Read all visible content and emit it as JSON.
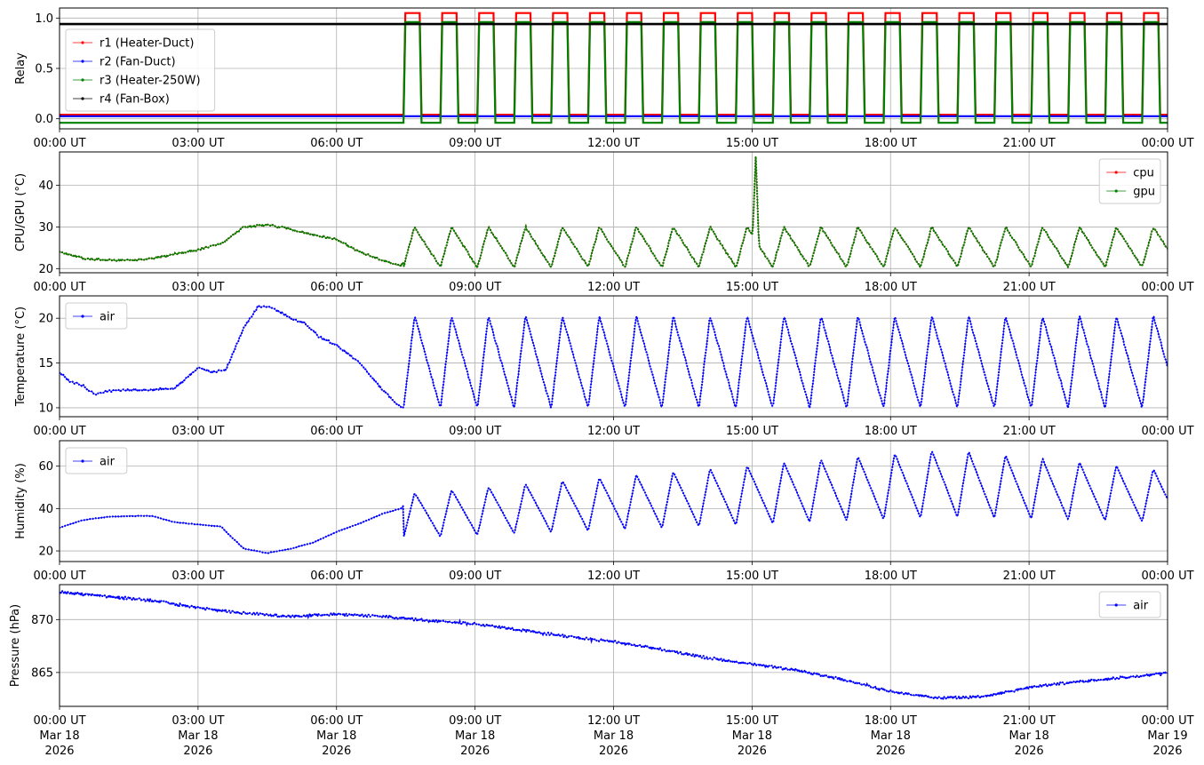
{
  "colors": {
    "red": "#ff0000",
    "blue": "#0000ff",
    "green": "#008000",
    "black": "#000000",
    "grid": "#b0b0b0"
  },
  "x_axis": {
    "ticks": [
      {
        "time": "00:00 UT",
        "date": "Mar 18",
        "year": "2026"
      },
      {
        "time": "03:00 UT",
        "date": "Mar 18",
        "year": "2026"
      },
      {
        "time": "06:00 UT",
        "date": "Mar 18",
        "year": "2026"
      },
      {
        "time": "09:00 UT",
        "date": "Mar 18",
        "year": "2026"
      },
      {
        "time": "12:00 UT",
        "date": "Mar 18",
        "year": "2026"
      },
      {
        "time": "15:00 UT",
        "date": "Mar 18",
        "year": "2026"
      },
      {
        "time": "18:00 UT",
        "date": "Mar 18",
        "year": "2026"
      },
      {
        "time": "21:00 UT",
        "date": "Mar 18",
        "year": "2026"
      },
      {
        "time": "00:00 UT",
        "date": "Mar 19",
        "year": "2026"
      }
    ],
    "range_hours": [
      0,
      24
    ]
  },
  "chart_data": [
    {
      "type": "line",
      "ylabel": "Relay",
      "ylim": [
        -0.1,
        1.1
      ],
      "yticks": [
        "0.0",
        "0.5",
        "1.0"
      ],
      "grid": true,
      "legend_position": "upper-left",
      "cycle": {
        "start_hour": 7.45,
        "period_hours": 0.8,
        "on_hours": 0.35,
        "end_hour": 24
      },
      "series": [
        {
          "name": "r1 (Heater-Duct)",
          "color": "#ff0000",
          "low": 0.04,
          "high": 1.05
        },
        {
          "name": "r2 (Fan-Duct)",
          "color": "#0000ff",
          "low": 0.025,
          "high": 0.025
        },
        {
          "name": "r3 (Heater-250W)",
          "color": "#008000",
          "low": -0.04,
          "high": 0.96
        },
        {
          "name": "r4 (Fan-Box)",
          "color": "#000000",
          "low": 0.94,
          "high": 0.94
        }
      ]
    },
    {
      "type": "line",
      "ylabel": "CPU/GPU (°C)",
      "ylim": [
        19,
        48
      ],
      "yticks": [
        "20",
        "30",
        "40"
      ],
      "grid": true,
      "legend_position": "upper-right",
      "series": [
        {
          "name": "cpu",
          "color": "#ff0000",
          "points": [
            [
              0,
              24
            ],
            [
              0.5,
              22.5
            ],
            [
              1,
              22
            ],
            [
              1.5,
              22
            ],
            [
              2,
              22.3
            ],
            [
              2.5,
              23.5
            ],
            [
              3,
              24.5
            ],
            [
              3.5,
              26
            ],
            [
              4,
              30
            ],
            [
              4.5,
              30.5
            ],
            [
              5,
              29.5
            ],
            [
              5.5,
              28
            ],
            [
              6,
              27
            ],
            [
              6.5,
              24
            ],
            [
              7,
              22
            ],
            [
              7.4,
              20.5
            ],
            [
              7.5,
              23
            ]
          ],
          "cycle": {
            "start_hour": 7.45,
            "period_hours": 0.8,
            "min": 20.3,
            "max": 30,
            "peak_frac": 0.3
          },
          "spike": {
            "hour": 15.08,
            "value": 47
          }
        },
        {
          "name": "gpu",
          "color": "#008000",
          "points": [
            [
              0,
              24
            ],
            [
              0.5,
              22.5
            ],
            [
              1,
              22
            ],
            [
              1.5,
              22
            ],
            [
              2,
              22.3
            ],
            [
              2.5,
              23.5
            ],
            [
              3,
              24.5
            ],
            [
              3.5,
              26
            ],
            [
              4,
              30
            ],
            [
              4.5,
              30.5
            ],
            [
              5,
              29.5
            ],
            [
              5.5,
              28
            ],
            [
              6,
              27
            ],
            [
              6.5,
              24
            ],
            [
              7,
              22
            ],
            [
              7.4,
              20.5
            ],
            [
              7.5,
              23
            ]
          ],
          "cycle": {
            "start_hour": 7.45,
            "period_hours": 0.8,
            "min": 20.3,
            "max": 30,
            "peak_frac": 0.3
          },
          "spike": {
            "hour": 15.08,
            "value": 47
          }
        }
      ]
    },
    {
      "type": "line",
      "ylabel": "Temperature (°C)",
      "ylim": [
        9,
        22.5
      ],
      "yticks": [
        "10",
        "15",
        "20"
      ],
      "grid": true,
      "legend_position": "upper-left",
      "series": [
        {
          "name": "air",
          "color": "#0000ff",
          "points": [
            [
              0,
              14
            ],
            [
              0.2,
              13
            ],
            [
              0.5,
              12.5
            ],
            [
              0.75,
              11.5
            ],
            [
              1,
              11.8
            ],
            [
              1.5,
              12
            ],
            [
              2,
              12
            ],
            [
              2.5,
              12.2
            ],
            [
              2.8,
              13.5
            ],
            [
              3,
              14.5
            ],
            [
              3.3,
              14
            ],
            [
              3.6,
              14.2
            ],
            [
              4,
              19
            ],
            [
              4.3,
              21.3
            ],
            [
              4.6,
              21.2
            ],
            [
              5,
              20
            ],
            [
              5.3,
              19.5
            ],
            [
              5.6,
              18
            ],
            [
              6,
              17
            ],
            [
              6.5,
              15
            ],
            [
              7,
              12
            ],
            [
              7.4,
              10
            ]
          ],
          "cycle": {
            "start_hour": 7.45,
            "period_hours": 0.8,
            "min": 9.9,
            "max": 20.3,
            "peak_frac": 0.3
          }
        }
      ]
    },
    {
      "type": "line",
      "ylabel": "Humidity (%)",
      "ylim": [
        15,
        72
      ],
      "yticks": [
        "20",
        "40",
        "60"
      ],
      "grid": true,
      "legend_position": "upper-left",
      "series": [
        {
          "name": "air",
          "color": "#0000ff",
          "points": [
            [
              0,
              31
            ],
            [
              0.5,
              34.5
            ],
            [
              1,
              36
            ],
            [
              1.5,
              36.5
            ],
            [
              2,
              36.5
            ],
            [
              2.5,
              33.5
            ],
            [
              3,
              32.5
            ],
            [
              3.5,
              31.5
            ],
            [
              3.7,
              27
            ],
            [
              4,
              21
            ],
            [
              4.5,
              19
            ],
            [
              5,
              21
            ],
            [
              5.5,
              24
            ],
            [
              6,
              29
            ],
            [
              6.5,
              33
            ],
            [
              7,
              37.5
            ],
            [
              7.4,
              40
            ],
            [
              7.5,
              43
            ]
          ],
          "cycle": {
            "start_hour": 7.45,
            "period_hours": 0.8,
            "min_start": 26,
            "max_start": 47,
            "min_mid": 36,
            "max_peak": 68,
            "peak_hour": 19.2,
            "min_end": 33.5,
            "max_end": 58,
            "peak_frac": 0.3
          }
        }
      ]
    },
    {
      "type": "line",
      "ylabel": "Pressure (hPa)",
      "ylim": [
        861.8,
        873.3
      ],
      "yticks": [
        "865",
        "870"
      ],
      "grid": true,
      "legend_position": "upper-right",
      "series": [
        {
          "name": "air",
          "color": "#0000ff",
          "points": [
            [
              0,
              872.6
            ],
            [
              1,
              872.2
            ],
            [
              2,
              871.8
            ],
            [
              3,
              871.1
            ],
            [
              4,
              870.6
            ],
            [
              5,
              870.3
            ],
            [
              6,
              870.5
            ],
            [
              7,
              870.3
            ],
            [
              8,
              869.9
            ],
            [
              9,
              869.6
            ],
            [
              10,
              869
            ],
            [
              11,
              868.4
            ],
            [
              12,
              867.9
            ],
            [
              13,
              867.2
            ],
            [
              14,
              866.4
            ],
            [
              15,
              865.8
            ],
            [
              16,
              865.2
            ],
            [
              17,
              864.3
            ],
            [
              18,
              863.2
            ],
            [
              19,
              862.6
            ],
            [
              20,
              862.7
            ],
            [
              21,
              863.6
            ],
            [
              22,
              864.1
            ],
            [
              23,
              864.5
            ],
            [
              24,
              864.9
            ]
          ]
        }
      ]
    }
  ]
}
